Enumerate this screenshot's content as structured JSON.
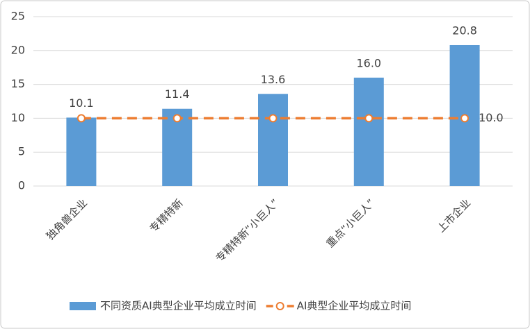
{
  "chart_data": {
    "type": "bar",
    "categories": [
      "独角兽企业",
      "专精特新",
      "专精特新“小巨人”",
      "重点“小巨人”",
      "上市企业"
    ],
    "series": [
      {
        "name": "不同资质AI典型企业平均成立时间",
        "type": "bar",
        "color": "#5b9bd5",
        "values": [
          10.1,
          11.4,
          13.6,
          16.0,
          20.8
        ],
        "value_labels": [
          "10.1",
          "11.4",
          "13.6",
          "16.0",
          "20.8"
        ]
      },
      {
        "name": "AI典型企业平均成立时间",
        "type": "line",
        "color": "#ed7d31",
        "values": [
          10,
          10,
          10,
          10,
          10
        ],
        "value_labels": [
          null,
          null,
          null,
          null,
          "10.0"
        ]
      }
    ],
    "ylim": [
      0,
      25
    ],
    "yticks": [
      0,
      5,
      10,
      15,
      20,
      25
    ],
    "grid": true,
    "legend": "bottom"
  }
}
